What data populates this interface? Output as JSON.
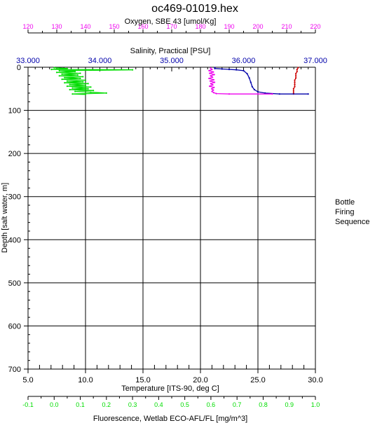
{
  "title": "oc469-01019.hex",
  "side_label": [
    "Bottle",
    "Firing",
    "Sequence"
  ],
  "colors": {
    "temperature": "#cc0000",
    "salinity": "#0000aa",
    "oxygen": "#ee00ee",
    "fluorescence": "#00dd00",
    "axis": "#000000"
  },
  "chart_data": {
    "type": "line",
    "title": "oc469-01019.hex",
    "y_axis": {
      "label": "Depth [salt water, m]",
      "range": [
        0,
        700
      ],
      "ticks": [
        "0",
        "100",
        "200",
        "300",
        "400",
        "500",
        "600",
        "700"
      ],
      "reversed": true
    },
    "axes": {
      "temperature": {
        "label": "Temperature [ITS-90, deg C]",
        "position": "bottom",
        "range": [
          5.0,
          30.0
        ],
        "ticks": [
          "5.0",
          "10.0",
          "15.0",
          "20.0",
          "25.0",
          "30.0"
        ]
      },
      "fluorescence": {
        "label": "Fluorescence, Wetlab ECO-AFL/FL [mg/m^3]",
        "position": "bottom",
        "range": [
          -0.1,
          1.0
        ],
        "ticks": [
          "-0.1",
          "0.0",
          "0.1",
          "0.2",
          "0.3",
          "0.4",
          "0.5",
          "0.6",
          "0.7",
          "0.8",
          "0.9",
          "1.0"
        ]
      },
      "salinity": {
        "label": "Salinity, Practical [PSU]",
        "position": "top",
        "range": [
          33.0,
          37.0
        ],
        "ticks": [
          "33.000",
          "34.000",
          "35.000",
          "36.000",
          "37.000"
        ]
      },
      "oxygen": {
        "label": "Oxygen, SBE 43 [umol/Kg]",
        "position": "top",
        "range": [
          120,
          220
        ],
        "ticks": [
          "120",
          "130",
          "140",
          "150",
          "160",
          "170",
          "180",
          "190",
          "200",
          "210",
          "220"
        ]
      }
    },
    "grid": true,
    "series": [
      {
        "name": "Temperature",
        "axis": "temperature",
        "points": [
          [
            28.5,
            1
          ],
          [
            28.4,
            5
          ],
          [
            28.4,
            10
          ],
          [
            28.3,
            15
          ],
          [
            28.3,
            20
          ],
          [
            28.3,
            25
          ],
          [
            28.2,
            30
          ],
          [
            28.2,
            35
          ],
          [
            28.2,
            40
          ],
          [
            28.2,
            45
          ],
          [
            28.1,
            50
          ],
          [
            28.1,
            55
          ],
          [
            28.1,
            60
          ],
          [
            28.1,
            62
          ]
        ]
      },
      {
        "name": "Salinity",
        "axis": "salinity",
        "points": [
          [
            35.6,
            1
          ],
          [
            35.6,
            3
          ],
          [
            35.7,
            4
          ],
          [
            35.8,
            5
          ],
          [
            35.9,
            6
          ],
          [
            36.0,
            8
          ],
          [
            36.05,
            15
          ],
          [
            36.08,
            25
          ],
          [
            36.1,
            35
          ],
          [
            36.12,
            45
          ],
          [
            36.15,
            52
          ],
          [
            36.2,
            57
          ],
          [
            36.3,
            60
          ],
          [
            36.5,
            62
          ],
          [
            36.9,
            62
          ]
        ]
      },
      {
        "name": "Oxygen",
        "axis": "oxygen",
        "points": [
          [
            183.5,
            2
          ],
          [
            184.0,
            5
          ],
          [
            183.0,
            8
          ],
          [
            184.5,
            11
          ],
          [
            183.2,
            14
          ],
          [
            184.8,
            17
          ],
          [
            183.5,
            20
          ],
          [
            184.2,
            23
          ],
          [
            183.0,
            26
          ],
          [
            184.6,
            29
          ],
          [
            183.4,
            32
          ],
          [
            184.9,
            35
          ],
          [
            183.6,
            38
          ],
          [
            184.3,
            41
          ],
          [
            183.2,
            44
          ],
          [
            184.7,
            47
          ],
          [
            183.9,
            50
          ],
          [
            184.5,
            53
          ],
          [
            184.0,
            56
          ],
          [
            184.6,
            59
          ],
          [
            185.5,
            61
          ],
          [
            190.0,
            62
          ],
          [
            200.0,
            62
          ],
          [
            205.0,
            62
          ]
        ]
      },
      {
        "name": "Fluorescence",
        "axis": "fluorescence",
        "points": [
          [
            0.0,
            1
          ],
          [
            0.05,
            3
          ],
          [
            -0.01,
            5
          ],
          [
            0.3,
            6
          ],
          [
            0.02,
            8
          ],
          [
            0.08,
            10
          ],
          [
            0.01,
            12
          ],
          [
            0.1,
            14
          ],
          [
            0.03,
            16
          ],
          [
            0.09,
            18
          ],
          [
            0.02,
            20
          ],
          [
            0.11,
            22
          ],
          [
            0.04,
            24
          ],
          [
            0.1,
            26
          ],
          [
            0.03,
            28
          ],
          [
            0.12,
            30
          ],
          [
            0.05,
            32
          ],
          [
            0.11,
            34
          ],
          [
            0.04,
            36
          ],
          [
            0.13,
            38
          ],
          [
            0.06,
            40
          ],
          [
            0.12,
            42
          ],
          [
            0.05,
            44
          ],
          [
            0.14,
            46
          ],
          [
            0.07,
            48
          ],
          [
            0.13,
            50
          ],
          [
            0.06,
            52
          ],
          [
            0.15,
            54
          ],
          [
            0.08,
            56
          ],
          [
            0.14,
            58
          ],
          [
            0.2,
            60
          ],
          [
            0.07,
            62
          ],
          [
            0.12,
            63
          ]
        ]
      }
    ]
  }
}
